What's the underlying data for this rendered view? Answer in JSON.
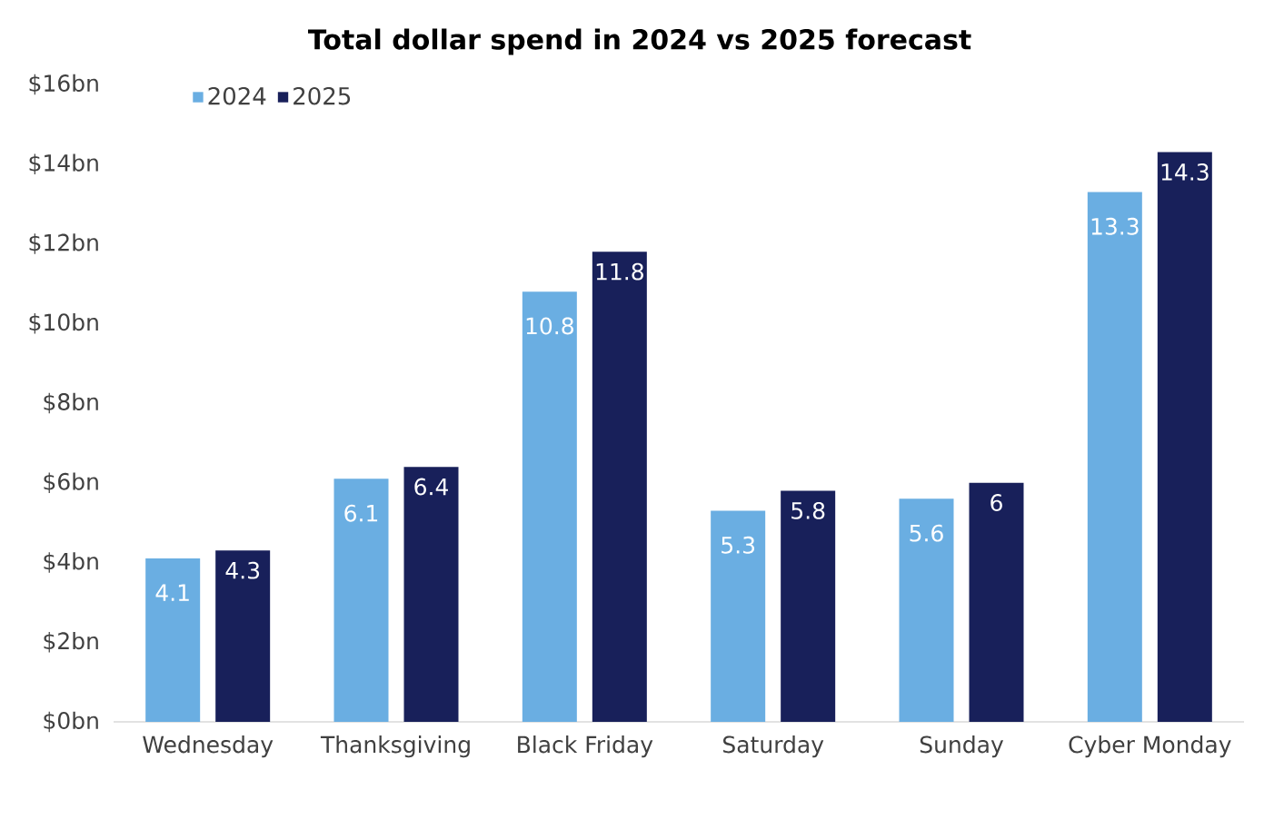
{
  "chart_data": {
    "type": "bar",
    "title": "Total dollar spend in 2024 vs 2025 forecast",
    "categories": [
      "Wednesday",
      "Thanksgiving",
      "Black Friday",
      "Saturday",
      "Sunday",
      "Cyber Monday"
    ],
    "series": [
      {
        "name": "2024",
        "color": "#6aaee2",
        "values": [
          4.1,
          6.1,
          10.8,
          5.3,
          5.6,
          13.3
        ]
      },
      {
        "name": "2025",
        "color": "#18205a",
        "values": [
          4.3,
          6.4,
          11.8,
          5.8,
          6,
          14.3
        ]
      }
    ],
    "ylim": [
      0,
      16
    ],
    "yticks": [
      {
        "value": 0,
        "label": "$0bn"
      },
      {
        "value": 2,
        "label": "$2bn"
      },
      {
        "value": 4,
        "label": "$4bn"
      },
      {
        "value": 6,
        "label": "$6bn"
      },
      {
        "value": 8,
        "label": "$8bn"
      },
      {
        "value": 10,
        "label": "$10bn"
      },
      {
        "value": 12,
        "label": "$12bn"
      },
      {
        "value": 14,
        "label": "$14bn"
      },
      {
        "value": 16,
        "label": "$16bn"
      }
    ],
    "data_labels": true,
    "grid": false,
    "legend": "top left"
  }
}
